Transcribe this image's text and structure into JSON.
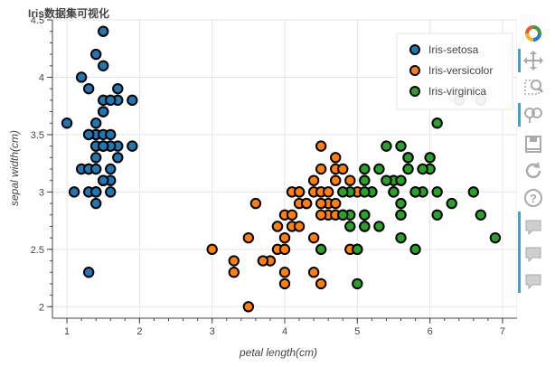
{
  "app": {
    "title": "Iris数据集可视化"
  },
  "toolbar": {
    "tools": [
      {
        "name": "bokeh-logo-icon",
        "active": false,
        "interactable": false
      },
      {
        "name": "pan-icon",
        "active": true,
        "interactable": true
      },
      {
        "name": "box-zoom-icon",
        "active": false,
        "interactable": true
      },
      {
        "name": "wheel-zoom-icon",
        "active": true,
        "interactable": true
      },
      {
        "name": "save-icon",
        "active": false,
        "interactable": true
      },
      {
        "name": "reset-icon",
        "active": false,
        "interactable": true
      },
      {
        "name": "help-icon",
        "active": false,
        "interactable": true
      },
      {
        "name": "hover-icon-1",
        "active": true,
        "interactable": true
      },
      {
        "name": "hover-icon-2",
        "active": true,
        "interactable": true
      },
      {
        "name": "hover-icon-3",
        "active": true,
        "interactable": true
      }
    ]
  },
  "chart_data": {
    "type": "scatter",
    "title": "Iris数据集可视化",
    "xlabel": "petal length(cm)",
    "ylabel": "sepal width(cm)",
    "xlim": [
      0.8,
      7.2
    ],
    "ylim": [
      1.9,
      4.5
    ],
    "xticks": [
      "1",
      "2",
      "3",
      "4",
      "5",
      "6",
      "7"
    ],
    "yticks": [
      "2",
      "2.5",
      "3",
      "3.5",
      "4",
      "4.5"
    ],
    "grid": true,
    "legend_position": "top-right",
    "series": [
      {
        "name": "Iris-setosa",
        "color": "#1f77b4",
        "points": [
          [
            1.4,
            3.5
          ],
          [
            1.4,
            3.0
          ],
          [
            1.3,
            3.2
          ],
          [
            1.5,
            3.1
          ],
          [
            1.4,
            3.6
          ],
          [
            1.7,
            3.9
          ],
          [
            1.4,
            3.4
          ],
          [
            1.5,
            3.4
          ],
          [
            1.4,
            2.9
          ],
          [
            1.5,
            3.1
          ],
          [
            1.5,
            3.7
          ],
          [
            1.6,
            3.4
          ],
          [
            1.4,
            3.0
          ],
          [
            1.1,
            3.0
          ],
          [
            1.2,
            4.0
          ],
          [
            1.5,
            4.4
          ],
          [
            1.3,
            3.9
          ],
          [
            1.4,
            3.5
          ],
          [
            1.7,
            3.8
          ],
          [
            1.5,
            3.8
          ],
          [
            1.7,
            3.4
          ],
          [
            1.5,
            3.7
          ],
          [
            1.0,
            3.6
          ],
          [
            1.7,
            3.3
          ],
          [
            1.9,
            3.4
          ],
          [
            1.6,
            3.0
          ],
          [
            1.6,
            3.4
          ],
          [
            1.5,
            3.5
          ],
          [
            1.4,
            3.4
          ],
          [
            1.6,
            3.2
          ],
          [
            1.6,
            3.1
          ],
          [
            1.5,
            3.4
          ],
          [
            1.5,
            4.1
          ],
          [
            1.4,
            4.2
          ],
          [
            1.5,
            3.1
          ],
          [
            1.2,
            3.2
          ],
          [
            1.3,
            3.5
          ],
          [
            1.5,
            3.1
          ],
          [
            1.3,
            3.0
          ],
          [
            1.5,
            3.4
          ],
          [
            1.3,
            3.5
          ],
          [
            1.3,
            2.3
          ],
          [
            1.3,
            3.2
          ],
          [
            1.6,
            3.5
          ],
          [
            1.9,
            3.8
          ],
          [
            1.4,
            3.0
          ],
          [
            1.6,
            3.8
          ],
          [
            1.4,
            3.2
          ],
          [
            1.5,
            3.7
          ],
          [
            1.4,
            3.3
          ]
        ]
      },
      {
        "name": "Iris-versicolor",
        "color": "#ff7f0e",
        "points": [
          [
            4.7,
            3.2
          ],
          [
            4.5,
            3.2
          ],
          [
            4.9,
            3.1
          ],
          [
            4.0,
            2.3
          ],
          [
            4.6,
            2.8
          ],
          [
            4.5,
            2.8
          ],
          [
            4.7,
            3.3
          ],
          [
            3.3,
            2.4
          ],
          [
            4.6,
            2.9
          ],
          [
            3.9,
            2.7
          ],
          [
            3.5,
            2.0
          ],
          [
            4.2,
            3.0
          ],
          [
            4.0,
            2.2
          ],
          [
            4.7,
            2.9
          ],
          [
            3.6,
            2.9
          ],
          [
            4.4,
            3.1
          ],
          [
            4.5,
            3.0
          ],
          [
            4.1,
            2.7
          ],
          [
            4.5,
            2.2
          ],
          [
            3.9,
            2.5
          ],
          [
            4.8,
            3.2
          ],
          [
            4.0,
            2.8
          ],
          [
            4.9,
            2.5
          ],
          [
            4.7,
            2.8
          ],
          [
            4.3,
            2.9
          ],
          [
            4.4,
            3.0
          ],
          [
            4.8,
            2.8
          ],
          [
            5.0,
            3.0
          ],
          [
            4.5,
            2.9
          ],
          [
            3.5,
            2.6
          ],
          [
            3.8,
            2.4
          ],
          [
            3.7,
            2.4
          ],
          [
            3.9,
            2.7
          ],
          [
            5.1,
            2.7
          ],
          [
            4.5,
            3.0
          ],
          [
            4.5,
            3.4
          ],
          [
            4.7,
            3.1
          ],
          [
            4.4,
            2.3
          ],
          [
            4.1,
            3.0
          ],
          [
            4.0,
            2.5
          ],
          [
            4.4,
            2.6
          ],
          [
            4.6,
            3.0
          ],
          [
            4.0,
            2.6
          ],
          [
            3.3,
            2.3
          ],
          [
            4.2,
            2.7
          ],
          [
            4.2,
            3.0
          ],
          [
            4.2,
            2.9
          ],
          [
            4.3,
            2.9
          ],
          [
            3.0,
            2.5
          ],
          [
            4.1,
            2.8
          ]
        ]
      },
      {
        "name": "Iris-virginica",
        "color": "#2ca02c",
        "points": [
          [
            6.0,
            3.3
          ],
          [
            5.1,
            2.7
          ],
          [
            5.9,
            3.0
          ],
          [
            5.6,
            2.9
          ],
          [
            5.8,
            3.0
          ],
          [
            6.6,
            3.0
          ],
          [
            4.5,
            2.5
          ],
          [
            6.3,
            2.9
          ],
          [
            5.8,
            2.5
          ],
          [
            6.1,
            3.6
          ],
          [
            5.1,
            3.2
          ],
          [
            5.3,
            2.7
          ],
          [
            5.5,
            3.0
          ],
          [
            5.0,
            2.5
          ],
          [
            5.1,
            2.8
          ],
          [
            5.3,
            3.2
          ],
          [
            5.5,
            3.0
          ],
          [
            6.7,
            3.8
          ],
          [
            6.9,
            2.6
          ],
          [
            5.0,
            2.2
          ],
          [
            5.7,
            3.2
          ],
          [
            4.9,
            2.8
          ],
          [
            6.7,
            2.8
          ],
          [
            4.9,
            2.7
          ],
          [
            5.7,
            3.3
          ],
          [
            6.0,
            3.2
          ],
          [
            4.8,
            2.8
          ],
          [
            4.9,
            3.0
          ],
          [
            5.6,
            2.8
          ],
          [
            5.8,
            3.0
          ],
          [
            6.1,
            2.8
          ],
          [
            6.4,
            3.8
          ],
          [
            5.6,
            2.8
          ],
          [
            5.1,
            2.8
          ],
          [
            5.6,
            2.6
          ],
          [
            6.1,
            3.0
          ],
          [
            5.6,
            3.4
          ],
          [
            5.5,
            3.1
          ],
          [
            4.8,
            3.0
          ],
          [
            5.4,
            3.1
          ],
          [
            5.6,
            3.1
          ],
          [
            5.1,
            3.1
          ],
          [
            5.1,
            2.7
          ],
          [
            5.9,
            3.2
          ],
          [
            5.7,
            3.3
          ],
          [
            5.2,
            3.0
          ],
          [
            5.0,
            2.5
          ],
          [
            5.2,
            3.0
          ],
          [
            5.4,
            3.4
          ],
          [
            5.1,
            3.0
          ]
        ]
      }
    ]
  }
}
